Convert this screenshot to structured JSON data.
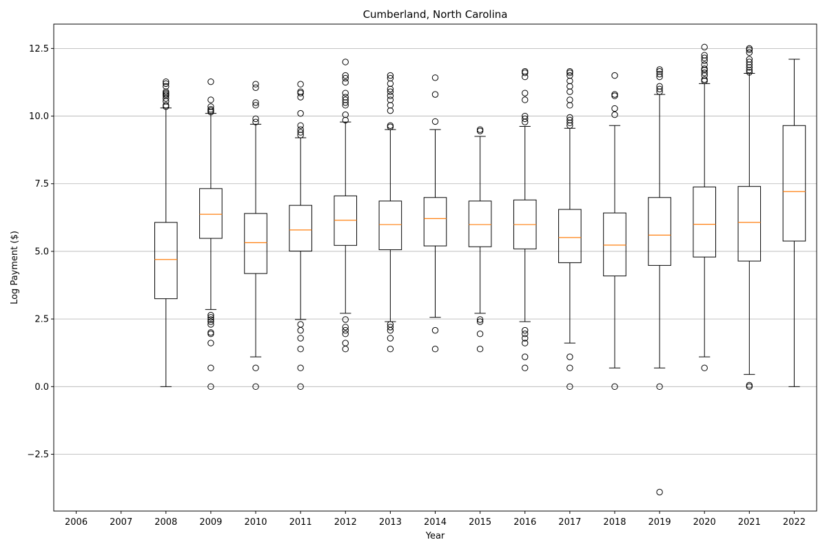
{
  "chart_data": {
    "type": "box",
    "title": "Cumberland, North Carolina",
    "xlabel": "Year",
    "ylabel": "Log Payment ($)",
    "ylim": [
      -4.6,
      13.4
    ],
    "yticks": [
      -2.5,
      0.0,
      2.5,
      5.0,
      7.5,
      10.0,
      12.5
    ],
    "ytick_labels": [
      "−2.5",
      "0.0",
      "2.5",
      "5.0",
      "7.5",
      "10.0",
      "12.5"
    ],
    "grid": "horizontal",
    "colors": {
      "box": "#000000",
      "median": "#ff7f0e",
      "grid": "#b0b0b0"
    },
    "categories": [
      "2006",
      "2007",
      "2008",
      "2009",
      "2010",
      "2011",
      "2012",
      "2013",
      "2014",
      "2015",
      "2016",
      "2017",
      "2018",
      "2019",
      "2020",
      "2021",
      "2022"
    ],
    "boxes": [
      {
        "year": "2006",
        "empty": true
      },
      {
        "year": "2007",
        "empty": true
      },
      {
        "year": "2008",
        "whislo": 0.0,
        "q1": 3.25,
        "med": 4.7,
        "q3": 6.07,
        "whishi": 10.3,
        "fliers": [
          10.35,
          10.4,
          10.55,
          10.65,
          10.75,
          10.8,
          10.85,
          10.9,
          11.1,
          11.2,
          11.27
        ]
      },
      {
        "year": "2009",
        "whislo": 2.85,
        "q1": 5.48,
        "med": 6.37,
        "q3": 7.32,
        "whishi": 10.1,
        "fliers": [
          0.0,
          0.69,
          1.61,
          1.95,
          2.0,
          2.3,
          2.4,
          2.48,
          2.56,
          2.64,
          10.15,
          10.2,
          10.25,
          10.35,
          10.6,
          11.27
        ]
      },
      {
        "year": "2010",
        "whislo": 1.1,
        "q1": 4.18,
        "med": 5.32,
        "q3": 6.4,
        "whishi": 9.7,
        "fliers": [
          0.0,
          0.69,
          9.78,
          9.9,
          10.4,
          10.5,
          11.05,
          11.18
        ]
      },
      {
        "year": "2011",
        "whislo": 2.48,
        "q1": 5.01,
        "med": 5.79,
        "q3": 6.7,
        "whishi": 9.2,
        "fliers": [
          0.0,
          0.69,
          1.39,
          1.79,
          2.08,
          2.3,
          9.3,
          9.4,
          9.5,
          9.65,
          10.1,
          10.7,
          10.85,
          10.9,
          11.18
        ]
      },
      {
        "year": "2012",
        "whislo": 2.71,
        "q1": 5.22,
        "med": 6.15,
        "q3": 7.05,
        "whishi": 9.78,
        "fliers": [
          1.39,
          1.61,
          1.95,
          2.08,
          2.2,
          2.48,
          9.85,
          10.05,
          10.4,
          10.5,
          10.6,
          10.7,
          10.85,
          11.25,
          11.4,
          11.5,
          12.0
        ]
      },
      {
        "year": "2013",
        "whislo": 2.4,
        "q1": 5.06,
        "med": 5.99,
        "q3": 6.86,
        "whishi": 9.5,
        "fliers": [
          1.39,
          1.79,
          2.08,
          2.2,
          2.3,
          9.6,
          9.65,
          10.2,
          10.4,
          10.6,
          10.75,
          10.9,
          11.0,
          11.2,
          11.4,
          11.5
        ]
      },
      {
        "year": "2014",
        "whislo": 2.56,
        "q1": 5.2,
        "med": 6.21,
        "q3": 6.99,
        "whishi": 9.5,
        "fliers": [
          1.39,
          2.08,
          9.8,
          10.8,
          11.42
        ]
      },
      {
        "year": "2015",
        "whislo": 2.71,
        "q1": 5.17,
        "med": 5.99,
        "q3": 6.86,
        "whishi": 9.25,
        "fliers": [
          1.39,
          1.95,
          2.4,
          2.48,
          9.45,
          9.5
        ]
      },
      {
        "year": "2016",
        "whislo": 2.4,
        "q1": 5.09,
        "med": 5.99,
        "q3": 6.9,
        "whishi": 9.62,
        "fliers": [
          0.69,
          1.1,
          1.61,
          1.79,
          1.95,
          2.08,
          9.78,
          9.9,
          10.0,
          10.6,
          10.85,
          11.45,
          11.6,
          11.65
        ]
      },
      {
        "year": "2017",
        "whislo": 1.61,
        "q1": 4.58,
        "med": 5.51,
        "q3": 6.55,
        "whishi": 9.55,
        "fliers": [
          0.0,
          0.69,
          1.1,
          9.65,
          9.75,
          9.85,
          9.95,
          10.4,
          10.6,
          10.9,
          11.1,
          11.3,
          11.5,
          11.6,
          11.65
        ]
      },
      {
        "year": "2018",
        "whislo": 0.69,
        "q1": 4.09,
        "med": 5.23,
        "q3": 6.42,
        "whishi": 9.65,
        "fliers": [
          0.0,
          10.05,
          10.28,
          10.75,
          10.8,
          11.5
        ]
      },
      {
        "year": "2019",
        "whislo": 0.69,
        "q1": 4.48,
        "med": 5.6,
        "q3": 6.99,
        "whishi": 10.8,
        "fliers": [
          -3.9,
          0.0,
          10.9,
          11.0,
          11.1,
          11.45,
          11.55,
          11.65,
          11.72
        ]
      },
      {
        "year": "2020",
        "whislo": 1.1,
        "q1": 4.79,
        "med": 6.0,
        "q3": 7.38,
        "whishi": 11.2,
        "fliers": [
          0.69,
          11.3,
          11.35,
          11.5,
          11.6,
          11.7,
          11.75,
          11.9,
          12.05,
          12.15,
          12.25,
          12.55
        ]
      },
      {
        "year": "2021",
        "whislo": 0.45,
        "q1": 4.64,
        "med": 6.07,
        "q3": 7.4,
        "whishi": 11.58,
        "fliers": [
          0.0,
          0.05,
          11.62,
          11.7,
          11.8,
          11.9,
          12.0,
          12.1,
          12.35,
          12.45,
          12.5
        ]
      },
      {
        "year": "2022",
        "whislo": 0.0,
        "q1": 5.38,
        "med": 7.21,
        "q3": 9.65,
        "whishi": 12.1,
        "fliers": []
      }
    ]
  }
}
